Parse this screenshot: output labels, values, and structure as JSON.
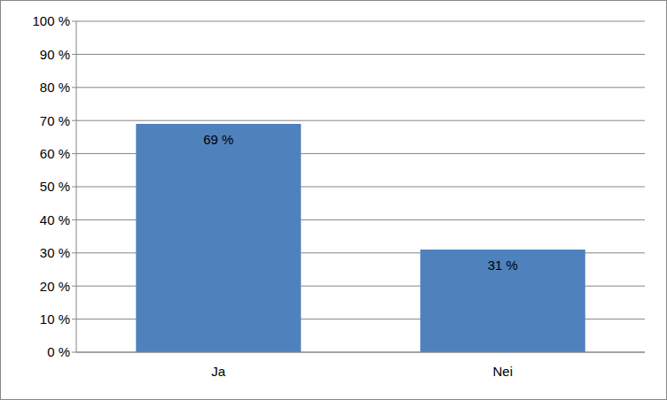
{
  "chart_data": {
    "type": "bar",
    "categories": [
      "Ja",
      "Nei"
    ],
    "values": [
      69,
      31
    ],
    "value_labels": [
      "69 %",
      "31 %"
    ],
    "data_labels": true,
    "color": "#4f81bd",
    "ylim": [
      0,
      100
    ],
    "yticks": [
      {
        "value": 0,
        "label": "0 %"
      },
      {
        "value": 10,
        "label": "10 %"
      },
      {
        "value": 20,
        "label": "20 %"
      },
      {
        "value": 30,
        "label": "30 %"
      },
      {
        "value": 40,
        "label": "40 %"
      },
      {
        "value": 50,
        "label": "50 %"
      },
      {
        "value": 60,
        "label": "60 %"
      },
      {
        "value": 70,
        "label": "70 %"
      },
      {
        "value": 80,
        "label": "80 %"
      },
      {
        "value": 90,
        "label": "90 %"
      },
      {
        "value": 100,
        "label": "100 %"
      }
    ],
    "grid": true
  }
}
